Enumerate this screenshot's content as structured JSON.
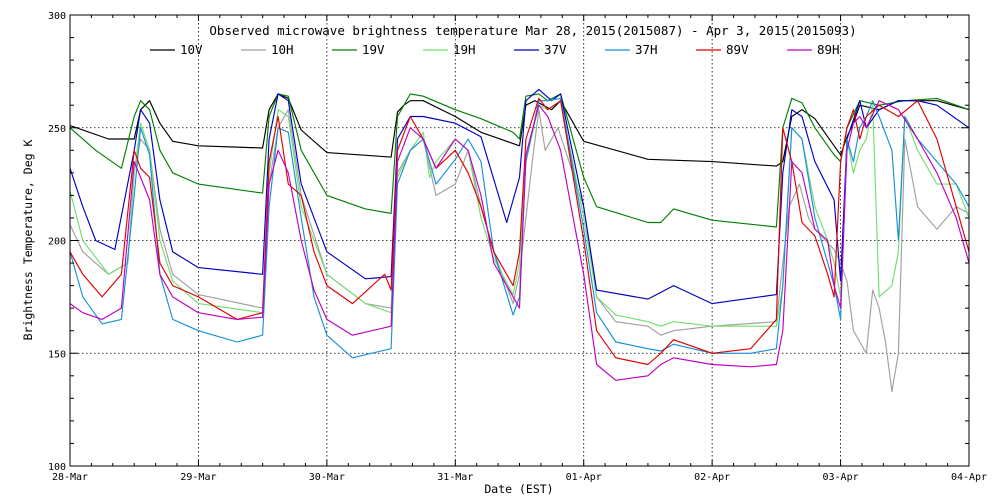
{
  "chart_data": {
    "type": "line",
    "title": "Observed microwave brightness temperature Mar 28, 2015(2015087) - Apr  3, 2015(2015093)",
    "xlabel": "Date (EST)",
    "ylabel": "Brightness Temperature, Deg K",
    "xlim": [
      0,
      7
    ],
    "ylim": [
      100,
      300
    ],
    "x_ticks": [
      {
        "x": 0,
        "label": "28-Mar"
      },
      {
        "x": 1,
        "label": "29-Mar"
      },
      {
        "x": 2,
        "label": "30-Mar"
      },
      {
        "x": 3,
        "label": "31-Mar"
      },
      {
        "x": 4,
        "label": "01-Apr"
      },
      {
        "x": 5,
        "label": "02-Apr"
      },
      {
        "x": 6,
        "label": "03-Apr"
      },
      {
        "x": 7,
        "label": "04-Apr"
      }
    ],
    "y_ticks": [
      100,
      150,
      200,
      250,
      300
    ],
    "grid": "dotted",
    "legend_position": "top",
    "series": [
      {
        "name": "10V",
        "color": "#000000",
        "x": [
          0,
          0.3,
          0.5,
          0.55,
          0.62,
          0.7,
          0.8,
          1.0,
          1.5,
          1.55,
          1.62,
          1.7,
          1.8,
          2.0,
          2.5,
          2.55,
          2.6,
          2.65,
          2.75,
          3.0,
          3.2,
          3.5,
          3.55,
          3.62,
          3.75,
          3.82,
          4.0,
          4.5,
          5.0,
          5.5,
          5.55,
          5.62,
          5.7,
          5.8,
          5.95,
          6.0,
          6.05,
          6.1,
          6.15,
          6.3,
          6.45,
          6.6,
          6.75,
          7.0
        ],
        "y": [
          251,
          245,
          245,
          258,
          262,
          252,
          244,
          242,
          241,
          258,
          265,
          263,
          249,
          239,
          237,
          257,
          260,
          262,
          262,
          255,
          248,
          242,
          260,
          262,
          258,
          262,
          244,
          236,
          235,
          233,
          235,
          255,
          258,
          254,
          242,
          238,
          246,
          252,
          260,
          258,
          262,
          262,
          262,
          258
        ]
      },
      {
        "name": "10H",
        "color": "#a0a0a0",
        "x": [
          0,
          0.1,
          0.3,
          0.45,
          0.5,
          0.55,
          0.62,
          0.7,
          0.8,
          1.0,
          1.5,
          1.55,
          1.62,
          1.7,
          1.8,
          2.0,
          2.3,
          2.5,
          2.55,
          2.65,
          2.75,
          2.85,
          3.0,
          3.1,
          3.2,
          3.3,
          3.45,
          3.5,
          3.6,
          3.65,
          3.7,
          3.8,
          4.0,
          4.1,
          4.25,
          4.5,
          4.6,
          4.7,
          5.0,
          5.5,
          5.55,
          5.6,
          5.68,
          5.75,
          5.8,
          5.95,
          6.0,
          6.05,
          6.1,
          6.15,
          6.2,
          6.25,
          6.3,
          6.35,
          6.4,
          6.45,
          6.5,
          6.6,
          6.75,
          6.9,
          7.0
        ],
        "y": [
          207,
          195,
          185,
          190,
          230,
          245,
          240,
          205,
          185,
          176,
          170,
          225,
          250,
          258,
          220,
          185,
          172,
          170,
          230,
          240,
          245,
          220,
          225,
          240,
          215,
          195,
          172,
          185,
          235,
          258,
          240,
          250,
          215,
          175,
          164,
          162,
          158,
          160,
          162,
          164,
          190,
          215,
          225,
          210,
          205,
          196,
          190,
          182,
          160,
          155,
          150,
          178,
          170,
          155,
          133,
          150,
          245,
          215,
          205,
          215,
          212
        ]
      },
      {
        "name": "19V",
        "color": "#008000",
        "x": [
          0,
          0.2,
          0.4,
          0.5,
          0.55,
          0.62,
          0.7,
          0.8,
          1.0,
          1.5,
          1.55,
          1.62,
          1.7,
          1.8,
          2.0,
          2.3,
          2.5,
          2.55,
          2.65,
          2.75,
          3.0,
          3.2,
          3.45,
          3.5,
          3.55,
          3.65,
          3.72,
          3.82,
          4.0,
          4.1,
          4.5,
          4.6,
          4.7,
          5.0,
          5.5,
          5.55,
          5.62,
          5.7,
          5.8,
          5.95,
          6.0,
          6.05,
          6.15,
          6.3,
          6.5,
          6.75,
          7.0
        ],
        "y": [
          250,
          240,
          232,
          255,
          262,
          258,
          240,
          230,
          225,
          221,
          255,
          265,
          264,
          240,
          220,
          214,
          212,
          255,
          265,
          264,
          258,
          254,
          248,
          245,
          264,
          265,
          262,
          265,
          228,
          215,
          208,
          208,
          214,
          209,
          206,
          250,
          263,
          261,
          250,
          238,
          235,
          250,
          262,
          260,
          262,
          263,
          258
        ]
      },
      {
        "name": "19H",
        "color": "#70e070",
        "x": [
          0,
          0.1,
          0.3,
          0.45,
          0.5,
          0.55,
          0.62,
          0.7,
          0.8,
          1.0,
          1.5,
          1.55,
          1.62,
          1.7,
          1.8,
          2.0,
          2.3,
          2.5,
          2.55,
          2.65,
          2.75,
          2.8,
          2.85,
          3.0,
          3.1,
          3.2,
          3.3,
          3.45,
          3.5,
          3.55,
          3.65,
          3.72,
          3.82,
          4.0,
          4.1,
          4.25,
          4.5,
          4.6,
          4.7,
          5.0,
          5.5,
          5.55,
          5.62,
          5.7,
          5.8,
          5.9,
          5.95,
          6.0,
          6.05,
          6.1,
          6.15,
          6.2,
          6.25,
          6.3,
          6.4,
          6.45,
          6.5,
          6.6,
          6.75,
          6.9,
          7.0
        ],
        "y": [
          222,
          200,
          185,
          190,
          230,
          252,
          240,
          200,
          182,
          172,
          168,
          230,
          258,
          255,
          215,
          185,
          172,
          168,
          228,
          240,
          248,
          228,
          235,
          245,
          240,
          210,
          192,
          176,
          190,
          235,
          260,
          258,
          262,
          210,
          175,
          167,
          164,
          162,
          164,
          162,
          162,
          180,
          250,
          245,
          215,
          200,
          190,
          175,
          245,
          230,
          240,
          245,
          260,
          175,
          180,
          195,
          255,
          240,
          225,
          225,
          210
        ]
      },
      {
        "name": "37V",
        "color": "#0000c0",
        "x": [
          0,
          0.1,
          0.2,
          0.35,
          0.5,
          0.55,
          0.62,
          0.7,
          0.8,
          1.0,
          1.5,
          1.55,
          1.62,
          1.7,
          1.8,
          2.0,
          2.3,
          2.5,
          2.55,
          2.65,
          2.75,
          3.0,
          3.2,
          3.4,
          3.5,
          3.55,
          3.65,
          3.75,
          3.82,
          4.0,
          4.1,
          4.5,
          4.6,
          4.7,
          5.0,
          5.5,
          5.55,
          5.62,
          5.7,
          5.8,
          5.95,
          6.0,
          6.05,
          6.15,
          6.2,
          6.3,
          6.45,
          6.6,
          6.75,
          7.0
        ],
        "y": [
          232,
          215,
          200,
          196,
          240,
          258,
          252,
          218,
          195,
          188,
          185,
          245,
          265,
          262,
          225,
          195,
          183,
          184,
          245,
          255,
          255,
          252,
          246,
          208,
          228,
          262,
          267,
          262,
          265,
          215,
          178,
          174,
          177,
          180,
          172,
          176,
          230,
          258,
          255,
          235,
          218,
          182,
          245,
          262,
          250,
          258,
          262,
          262,
          260,
          250
        ]
      },
      {
        "name": "37H",
        "color": "#1890d8",
        "x": [
          0,
          0.1,
          0.25,
          0.4,
          0.5,
          0.55,
          0.62,
          0.7,
          0.8,
          1.0,
          1.3,
          1.5,
          1.55,
          1.62,
          1.7,
          1.8,
          1.9,
          2.0,
          2.2,
          2.5,
          2.55,
          2.65,
          2.75,
          2.85,
          3.0,
          3.1,
          3.2,
          3.3,
          3.45,
          3.5,
          3.55,
          3.65,
          3.72,
          3.82,
          4.0,
          4.1,
          4.25,
          4.5,
          4.6,
          4.7,
          5.0,
          5.3,
          5.5,
          5.55,
          5.62,
          5.7,
          5.8,
          5.9,
          5.95,
          6.0,
          6.05,
          6.1,
          6.15,
          6.2,
          6.25,
          6.3,
          6.4,
          6.45,
          6.5,
          6.6,
          6.75,
          6.9,
          7.0
        ],
        "y": [
          195,
          175,
          163,
          165,
          220,
          250,
          238,
          185,
          165,
          160,
          155,
          158,
          215,
          250,
          248,
          210,
          175,
          158,
          148,
          152,
          225,
          240,
          245,
          225,
          236,
          245,
          235,
          195,
          167,
          175,
          235,
          262,
          262,
          263,
          205,
          168,
          155,
          152,
          151,
          154,
          150,
          150,
          152,
          180,
          250,
          245,
          210,
          190,
          180,
          165,
          245,
          235,
          250,
          255,
          262,
          255,
          240,
          200,
          255,
          245,
          235,
          225,
          215
        ]
      },
      {
        "name": "89V",
        "color": "#e00000",
        "x": [
          0,
          0.1,
          0.25,
          0.4,
          0.5,
          0.55,
          0.62,
          0.7,
          0.8,
          1.0,
          1.3,
          1.5,
          1.55,
          1.62,
          1.7,
          1.8,
          1.9,
          2.0,
          2.2,
          2.45,
          2.5,
          2.55,
          2.65,
          2.75,
          2.85,
          3.0,
          3.1,
          3.2,
          3.3,
          3.45,
          3.5,
          3.55,
          3.65,
          3.72,
          3.82,
          4.0,
          4.1,
          4.25,
          4.5,
          4.6,
          4.7,
          5.0,
          5.3,
          5.5,
          5.55,
          5.62,
          5.7,
          5.8,
          5.9,
          5.95,
          6.0,
          6.05,
          6.1,
          6.15,
          6.2,
          6.3,
          6.45,
          6.6,
          6.75,
          6.9,
          7.0
        ],
        "y": [
          195,
          185,
          175,
          185,
          240,
          232,
          228,
          190,
          180,
          175,
          165,
          168,
          235,
          255,
          225,
          220,
          195,
          180,
          172,
          185,
          178,
          240,
          255,
          245,
          232,
          240,
          230,
          215,
          195,
          180,
          195,
          245,
          263,
          258,
          262,
          200,
          160,
          148,
          145,
          150,
          156,
          150,
          152,
          165,
          250,
          235,
          208,
          202,
          185,
          175,
          235,
          250,
          258,
          245,
          255,
          260,
          255,
          262,
          245,
          215,
          195
        ]
      },
      {
        "name": "89H",
        "color": "#c000c0",
        "x": [
          0,
          0.1,
          0.25,
          0.4,
          0.5,
          0.55,
          0.62,
          0.7,
          0.8,
          1.0,
          1.3,
          1.5,
          1.55,
          1.62,
          1.7,
          1.8,
          1.9,
          2.0,
          2.2,
          2.5,
          2.55,
          2.65,
          2.75,
          2.85,
          3.0,
          3.1,
          3.2,
          3.3,
          3.45,
          3.5,
          3.55,
          3.65,
          3.72,
          3.82,
          4.0,
          4.1,
          4.25,
          4.5,
          4.6,
          4.7,
          5.0,
          5.3,
          5.5,
          5.55,
          5.62,
          5.7,
          5.8,
          5.9,
          5.95,
          6.0,
          6.05,
          6.1,
          6.15,
          6.2,
          6.3,
          6.45,
          6.6,
          6.75,
          6.9,
          7.0
        ],
        "y": [
          172,
          168,
          165,
          170,
          235,
          228,
          218,
          185,
          175,
          168,
          165,
          166,
          225,
          240,
          230,
          200,
          178,
          165,
          158,
          162,
          235,
          250,
          245,
          232,
          245,
          240,
          220,
          190,
          175,
          170,
          238,
          260,
          255,
          240,
          185,
          145,
          138,
          140,
          145,
          148,
          145,
          144,
          145,
          160,
          235,
          230,
          205,
          200,
          180,
          170,
          240,
          252,
          255,
          250,
          262,
          258,
          245,
          230,
          210,
          190
        ]
      }
    ]
  }
}
